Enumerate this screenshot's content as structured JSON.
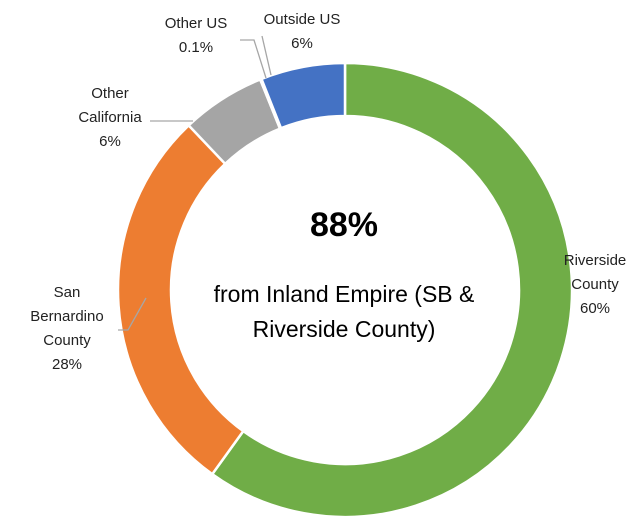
{
  "chart_data": {
    "type": "pie",
    "variant": "donut",
    "categories": [
      "Riverside County",
      "San Bernardino County",
      "Other California",
      "Other US",
      "Outside US"
    ],
    "values": [
      60,
      28,
      6,
      0.1,
      6
    ],
    "colors": [
      "#70ad47",
      "#ed7d31",
      "#a5a5a5",
      "#ffc000",
      "#4472c4"
    ],
    "data_labels": [
      {
        "lines": [
          "Riverside",
          "County",
          "60%"
        ]
      },
      {
        "lines": [
          "San",
          "Bernardino",
          "County",
          "28%"
        ]
      },
      {
        "lines": [
          "Other",
          "California",
          "6%"
        ]
      },
      {
        "lines": [
          "Other US",
          "0.1%"
        ]
      },
      {
        "lines": [
          "Outside US",
          "6%"
        ]
      }
    ],
    "center_value": "88%",
    "center_text_lines": [
      "from Inland Empire (SB &",
      "Riverside County)"
    ],
    "legend": "none"
  }
}
